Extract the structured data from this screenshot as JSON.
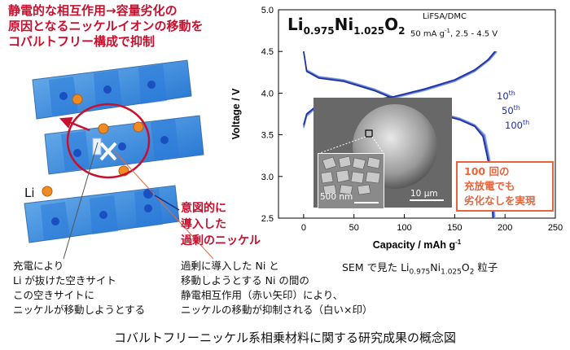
{
  "annotations": {
    "title_red": [
      "静電的な相互作用→容量劣化の",
      "原因となるニッケルイオンの移動を",
      "コバルトフリー構成で抑制"
    ],
    "li_label": "Li",
    "intentional": [
      "意図的に",
      "導入した",
      "過剰のニッケル"
    ],
    "charge_text": [
      "充電により",
      "Li が抜けた空きサイト",
      "この空きサイトに",
      "ニッケルが移動しようとする"
    ],
    "excess_text": [
      "過剰に導入した Ni と",
      "移動しようとする Ni の間の",
      "静電相互作用（赤い矢印）により、",
      "ニッケルの移動が抑制される（白い×印）"
    ],
    "sem_caption_pre": "SEM で見た Li",
    "sem_caption_sub1": "0.975",
    "sem_caption_mid": "Ni",
    "sem_caption_sub2": "1.025",
    "sem_caption_post": "O",
    "sem_caption_sub3": "2",
    "sem_caption_end": " 粒子",
    "bottom_caption": "コバルトフリーニッケル系相乗材料に関する研究成果の概念図"
  },
  "chart_labels": {
    "formula_li": "Li",
    "formula_li_sub": "0.975",
    "formula_ni": "Ni",
    "formula_ni_sub": "1.025",
    "formula_o": "O",
    "formula_o_sub": "2",
    "electrolyte": "LiFSA/DMC",
    "cond_pre": "50 mA g",
    "cond_sup": "-1",
    "cond_post": ", 2.5 - 4.5 V",
    "cycles": [
      {
        "n": "10",
        "sup": "th"
      },
      {
        "n": "50",
        "sup": "th"
      },
      {
        "n": "100",
        "sup": "th"
      }
    ],
    "callout": [
      "100 回の",
      "充放電でも",
      "劣化なしを実現"
    ],
    "scale_small": "500 nm",
    "scale_large": "10 μm"
  },
  "chart_data": {
    "type": "line",
    "xlabel": "Capacity  /  mAh g",
    "xlabel_sup": "-1",
    "ylabel": "Voltage  /  V",
    "xlim": [
      -25,
      250
    ],
    "ylim": [
      2.5,
      5.0
    ],
    "xticks": [
      0,
      50,
      100,
      150,
      200,
      250
    ],
    "yticks": [
      2.5,
      3.0,
      3.5,
      4.0,
      4.5,
      5.0
    ],
    "series": [
      {
        "name": "10",
        "charge": [
          [
            0,
            3.58
          ],
          [
            3,
            3.72
          ],
          [
            10,
            3.8
          ],
          [
            30,
            3.84
          ],
          [
            60,
            3.88
          ],
          [
            90,
            3.94
          ],
          [
            120,
            4.03
          ],
          [
            150,
            4.14
          ],
          [
            170,
            4.26
          ],
          [
            185,
            4.4
          ],
          [
            192,
            4.5
          ]
        ],
        "discharge": [
          [
            0,
            4.5
          ],
          [
            3,
            4.28
          ],
          [
            15,
            4.2
          ],
          [
            40,
            4.16
          ],
          [
            70,
            4.05
          ],
          [
            100,
            3.9
          ],
          [
            130,
            3.78
          ],
          [
            155,
            3.7
          ],
          [
            170,
            3.62
          ],
          [
            180,
            3.5
          ],
          [
            185,
            3.2
          ],
          [
            188,
            2.9
          ],
          [
            190,
            2.5
          ]
        ]
      },
      {
        "name": "50",
        "charge": [
          [
            0,
            3.6
          ],
          [
            3,
            3.74
          ],
          [
            10,
            3.81
          ],
          [
            30,
            3.85
          ],
          [
            60,
            3.89
          ],
          [
            90,
            3.95
          ],
          [
            120,
            4.04
          ],
          [
            150,
            4.15
          ],
          [
            170,
            4.27
          ],
          [
            184,
            4.4
          ],
          [
            191,
            4.5
          ]
        ],
        "discharge": [
          [
            0,
            4.5
          ],
          [
            3,
            4.27
          ],
          [
            15,
            4.19
          ],
          [
            40,
            4.15
          ],
          [
            70,
            4.04
          ],
          [
            100,
            3.89
          ],
          [
            130,
            3.77
          ],
          [
            155,
            3.69
          ],
          [
            170,
            3.61
          ],
          [
            179,
            3.49
          ],
          [
            184,
            3.2
          ],
          [
            187,
            2.9
          ],
          [
            189,
            2.5
          ]
        ]
      },
      {
        "name": "100",
        "charge": [
          [
            0,
            3.62
          ],
          [
            3,
            3.75
          ],
          [
            10,
            3.82
          ],
          [
            30,
            3.86
          ],
          [
            60,
            3.9
          ],
          [
            90,
            3.96
          ],
          [
            120,
            4.05
          ],
          [
            150,
            4.16
          ],
          [
            170,
            4.28
          ],
          [
            183,
            4.4
          ],
          [
            190,
            4.5
          ]
        ],
        "discharge": [
          [
            0,
            4.5
          ],
          [
            3,
            4.26
          ],
          [
            15,
            4.18
          ],
          [
            40,
            4.14
          ],
          [
            70,
            4.03
          ],
          [
            100,
            3.88
          ],
          [
            130,
            3.76
          ],
          [
            155,
            3.68
          ],
          [
            170,
            3.6
          ],
          [
            178,
            3.48
          ],
          [
            183,
            3.2
          ],
          [
            186,
            2.9
          ],
          [
            188,
            2.5
          ]
        ]
      }
    ],
    "colors": [
      "#8fa8e0",
      "#4a66cc",
      "#1c2f9e"
    ]
  }
}
